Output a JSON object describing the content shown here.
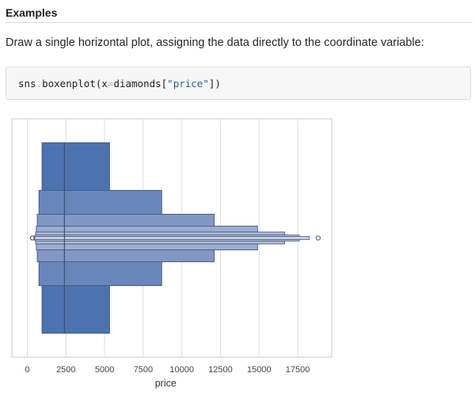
{
  "section": {
    "heading": "Examples"
  },
  "description": "Draw a single horizontal plot, assigning the data directly to the coordinate variable:",
  "code": {
    "prefix": "sns",
    "dot": ".",
    "func": "boxenplot(x",
    "eq": "=",
    "arg": "diamonds[",
    "string": "\"price\"",
    "suffix": "])"
  },
  "chart_data": {
    "type": "boxen",
    "orientation": "horizontal",
    "xlabel": "price",
    "ylabel": "",
    "title": "",
    "xlim": [
      -1000,
      19700
    ],
    "x_ticks": [
      0,
      2500,
      5000,
      7500,
      10000,
      12500,
      15000,
      17500
    ],
    "x_tick_labels": [
      "0",
      "2500",
      "5000",
      "7500",
      "10000",
      "12500",
      "15000",
      "17500"
    ],
    "grid": true,
    "median": 2401,
    "boxes": [
      {
        "level": 1,
        "low": 950,
        "high": 5324,
        "height_fraction": 0.8,
        "color": "#4c72b0"
      },
      {
        "level": 2,
        "low": 750,
        "high": 8700,
        "height_fraction": 0.4,
        "color": "#6986bb"
      },
      {
        "level": 3,
        "low": 640,
        "high": 12100,
        "height_fraction": 0.2,
        "color": "#8397c4"
      },
      {
        "level": 4,
        "low": 580,
        "high": 14900,
        "height_fraction": 0.1,
        "color": "#9badd0"
      },
      {
        "level": 5,
        "low": 540,
        "high": 16650,
        "height_fraction": 0.05,
        "color": "#aebad7"
      },
      {
        "level": 6,
        "low": 490,
        "high": 17600,
        "height_fraction": 0.025,
        "color": "#bcc6dd"
      },
      {
        "level": 7,
        "low": 420,
        "high": 18250,
        "height_fraction": 0.0125,
        "color": "#c9d0e3"
      }
    ],
    "outliers_low": [
      326,
      340
    ],
    "outliers_high": [
      18823
    ],
    "colors": {
      "edge": "#3b4f72",
      "grid": "#dedede",
      "frame": "#d2d2d2",
      "outlier": "#4d5a73"
    }
  }
}
